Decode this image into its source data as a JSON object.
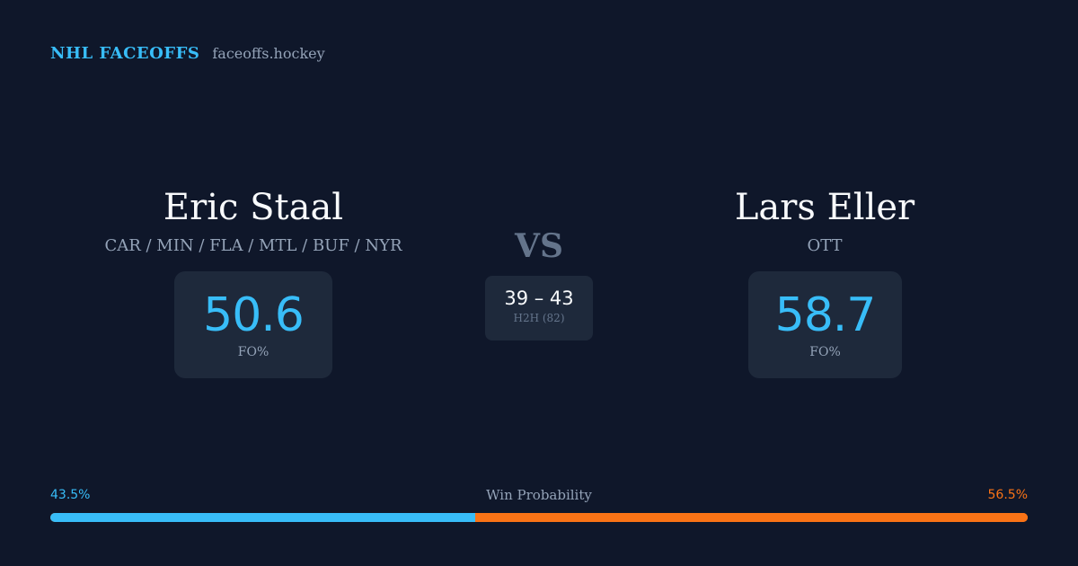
{
  "brand": {
    "title": "NHL FACEOFFS",
    "url": "faceoffs.hockey"
  },
  "left_player": {
    "name": "Eric Staal",
    "teams": "CAR / MIN / FLA / MTL / BUF / NYR",
    "fo_pct": "50.6",
    "fo_label": "FO%"
  },
  "right_player": {
    "name": "Lars Eller",
    "teams": "OTT",
    "fo_pct": "58.7",
    "fo_label": "FO%"
  },
  "versus": {
    "label": "VS",
    "h2h_score": "39 – 43",
    "h2h_label": "H2H (82)"
  },
  "win_probability": {
    "title": "Win Probability",
    "left_label": "43.5%",
    "right_label": "56.5%",
    "left_fraction": 0.435,
    "left_color": "#38bdf8",
    "right_color": "#f97316"
  }
}
